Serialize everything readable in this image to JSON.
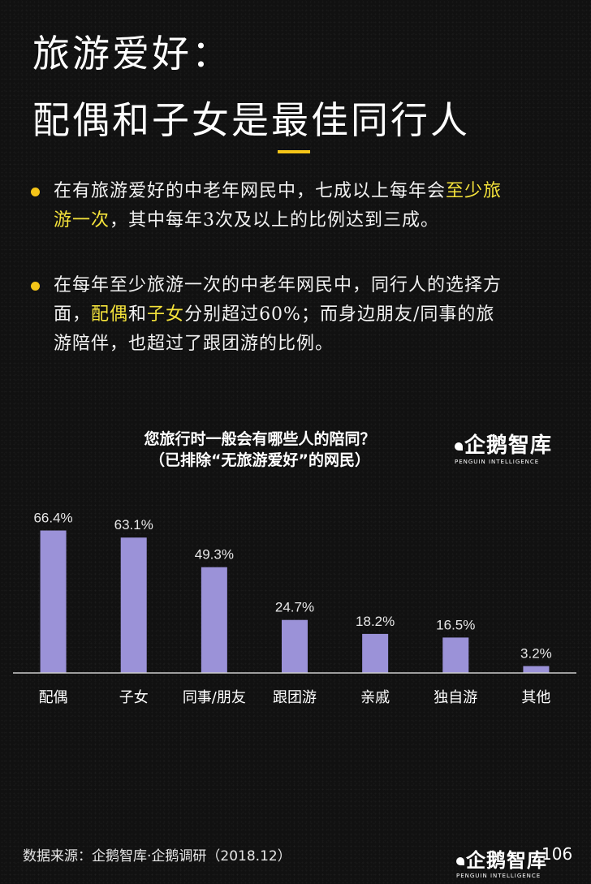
{
  "title": {
    "line1": "旅游爱好：",
    "line2": "配偶和子女是最佳同行人"
  },
  "bullets": [
    {
      "lines": [
        [
          {
            "text": "在有旅游爱好的中老年网民中，七成以上每年会",
            "hl": false
          },
          {
            "text": "至少旅",
            "hl": true
          }
        ],
        [
          {
            "text": "游一次",
            "hl": true
          },
          {
            "text": "，其中每年3次及以上的比例达到三成。",
            "hl": false
          }
        ]
      ]
    },
    {
      "lines": [
        [
          {
            "text": "在每年至少旅游一次的中老年网民中，同行人的选择方",
            "hl": false
          }
        ],
        [
          {
            "text": "面，",
            "hl": false
          },
          {
            "text": "配偶",
            "hl": true
          },
          {
            "text": "和",
            "hl": false
          },
          {
            "text": "子女",
            "hl": true
          },
          {
            "text": "分别超过60%；而身边朋友/同事的旅",
            "hl": false
          }
        ],
        [
          {
            "text": "游陪伴，也超过了跟团游的比例。",
            "hl": false
          }
        ]
      ]
    }
  ],
  "chart_data": {
    "type": "bar",
    "title": "您旅行时一般会有哪些人的陪同？",
    "subtitle": "（已排除“无旅游爱好”的网民）",
    "categories": [
      "配偶",
      "子女",
      "同事/朋友",
      "跟团游",
      "亲戚",
      "独自游",
      "其他"
    ],
    "values": [
      66.4,
      63.1,
      49.3,
      24.7,
      18.2,
      16.5,
      3.2
    ],
    "value_labels": [
      "66.4%",
      "63.1%",
      "49.3%",
      "24.7%",
      "18.2%",
      "16.5%",
      "3.2%"
    ],
    "ylim": [
      0,
      70
    ],
    "bar_color": "#9b92d8",
    "grid": false
  },
  "logo": {
    "name": "企鹅智库",
    "sub": "PENGUIN INTELLIGENCE"
  },
  "footer": {
    "source": "数据来源：企鹅智库·企鹅调研（2018.12）",
    "page_number": "106"
  },
  "colors": {
    "accent": "#f5c518",
    "highlight_text": "#f5e33b",
    "background": "#111111"
  }
}
